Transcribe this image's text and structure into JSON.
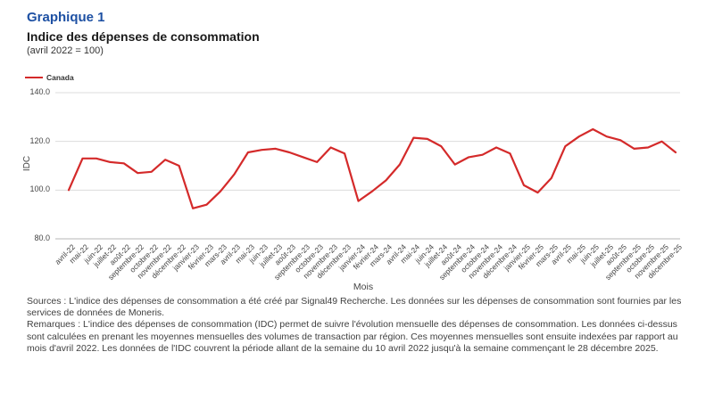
{
  "header": {
    "chart_number": "Graphique 1",
    "title": "Indice des dépenses de consommation",
    "subtitle": "(avril 2022 = 100)"
  },
  "legend": {
    "label": "Canada"
  },
  "colors": {
    "title_blue": "#1d50a3",
    "line_red": "#d42a2a",
    "gridline": "#dcdcdc",
    "axis_line": "#b7b7b7",
    "axis_text": "#444444"
  },
  "chart_data": {
    "type": "line",
    "title": "Indice des dépenses de consommation",
    "xlabel": "Mois",
    "ylabel": "IDC",
    "ylim": [
      80,
      140
    ],
    "yticks": [
      80,
      100,
      120,
      140
    ],
    "ytick_labels": [
      "80.0",
      "100.0",
      "120.0",
      "140.0"
    ],
    "grid": true,
    "legend_position": "top-left",
    "categories": [
      "avril-22",
      "mai-22",
      "juin-22",
      "juillet-22",
      "août-22",
      "septembre-22",
      "octobre-22",
      "novembre-22",
      "décembre-22",
      "janvier-23",
      "février-23",
      "mars-23",
      "avril-23",
      "mai-23",
      "juin-23",
      "juillet-23",
      "août-23",
      "septembre-23",
      "octobre-23",
      "novembre-23",
      "décembre-23",
      "janvier-24",
      "février-24",
      "mars-24",
      "avril-24",
      "mai-24",
      "juin-24",
      "juillet-24",
      "août-24",
      "septembre-24",
      "octobre-24",
      "novembre-24",
      "décembre-24",
      "janvier-25",
      "février-25",
      "mars-25",
      "avril-25",
      "mai-25",
      "juin-25",
      "juillet-25",
      "août-25",
      "septembre-25",
      "octobre-25",
      "novembre-25",
      "décembre-25"
    ],
    "series": [
      {
        "name": "Canada",
        "color": "#d42a2a",
        "values": [
          100,
          113,
          113,
          111.5,
          111,
          107,
          107.5,
          112.5,
          110,
          92.5,
          94,
          99.5,
          106.5,
          115.5,
          116.5,
          117,
          115.5,
          113.5,
          111.5,
          117.5,
          115,
          95.5,
          99.5,
          104,
          110.5,
          121.5,
          121,
          118,
          110.5,
          113.5,
          114.5,
          117.5,
          115,
          102,
          99,
          105,
          118,
          122,
          125,
          122,
          120.5,
          117,
          117.5,
          120,
          115.5
        ]
      }
    ]
  },
  "footnotes": {
    "sources": "Sources : L'indice des dépenses de consommation a été créé par Signal49 Recherche. Les données sur les dépenses de consommation sont fournies par les services de données de Moneris.",
    "remarques": "Remarques : L'indice des dépenses de consommation (IDC) permet de suivre l'évolution mensuelle des dépenses de consommation. Les données ci-dessus sont calculées en prenant les moyennes mensuelles des volumes de transaction par région. Ces moyennes mensuelles sont ensuite indexées par rapport au mois d'avril 2022. Les données de l'IDC couvrent la période allant de la semaine du 10 avril 2022 jusqu'à la semaine commençant le 28 décembre 2025."
  }
}
